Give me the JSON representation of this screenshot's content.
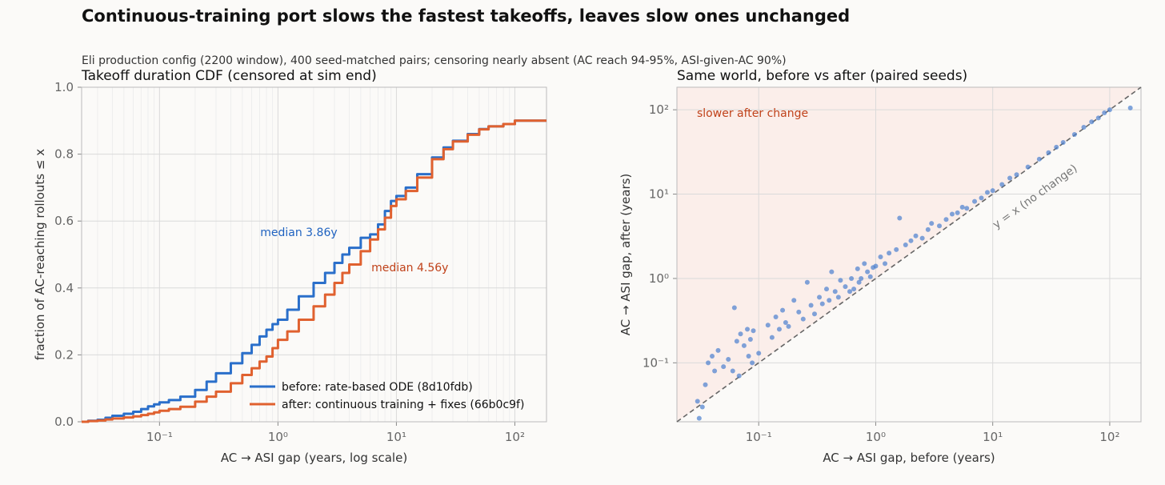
{
  "title": "Continuous-training port slows the fastest takeoffs, leaves slow ones unchanged",
  "subtitle": "Eli production config (2200 window), 400 seed-matched pairs; censoring nearly absent (AC reach 94-95%, ASI-given-AC 90%)",
  "colors": {
    "before": "#2a6fca",
    "after": "#e0612f",
    "scatter": "#4a7fcf",
    "shade": "#fbeeea",
    "grid": "#dadada",
    "diag": "#666666",
    "annot_before": "#1f62c0",
    "annot_after": "#c0421a"
  },
  "chart_data": [
    {
      "type": "line",
      "title": "Takeoff duration CDF (censored at sim end)",
      "xlabel": "AC → ASI gap (years, log scale)",
      "ylabel": "fraction of AC-reaching rollouts ≤ x",
      "xscale": "log",
      "xlim": [
        0.022,
        185
      ],
      "ylim": [
        0,
        1
      ],
      "xticks": [
        {
          "value": 0.1,
          "label": "10⁻¹"
        },
        {
          "value": 1,
          "label": "10⁰"
        },
        {
          "value": 10,
          "label": "10¹"
        },
        {
          "value": 100,
          "label": "10²"
        }
      ],
      "yticks": [
        {
          "value": 0,
          "label": "0.0"
        },
        {
          "value": 0.2,
          "label": "0.2"
        },
        {
          "value": 0.4,
          "label": "0.4"
        },
        {
          "value": 0.6,
          "label": "0.6"
        },
        {
          "value": 0.8,
          "label": "0.8"
        },
        {
          "value": 1,
          "label": "1.0"
        }
      ],
      "grid": true,
      "legend_position": "lower-right",
      "series": [
        {
          "name": "before: rate-based ODE (8d10fdb)",
          "x": [
            0.022,
            0.025,
            0.03,
            0.035,
            0.04,
            0.05,
            0.06,
            0.07,
            0.08,
            0.09,
            0.1,
            0.12,
            0.15,
            0.2,
            0.25,
            0.3,
            0.4,
            0.5,
            0.6,
            0.7,
            0.8,
            0.9,
            1.0,
            1.2,
            1.5,
            2.0,
            2.5,
            3.0,
            3.5,
            4.0,
            5.0,
            6.0,
            7.0,
            8.0,
            9.0,
            10,
            12,
            15,
            20,
            25,
            30,
            40,
            50,
            60,
            80,
            100,
            120,
            185
          ],
          "values": [
            0.0,
            0.003,
            0.006,
            0.012,
            0.018,
            0.024,
            0.03,
            0.038,
            0.046,
            0.052,
            0.058,
            0.065,
            0.075,
            0.095,
            0.12,
            0.145,
            0.175,
            0.205,
            0.23,
            0.255,
            0.275,
            0.292,
            0.305,
            0.335,
            0.375,
            0.415,
            0.445,
            0.475,
            0.5,
            0.52,
            0.55,
            0.56,
            0.59,
            0.63,
            0.66,
            0.675,
            0.7,
            0.74,
            0.79,
            0.82,
            0.84,
            0.86,
            0.875,
            0.883,
            0.89,
            0.9,
            0.9,
            0.9
          ]
        },
        {
          "name": "after: continuous training + fixes (66b0c9f)",
          "x": [
            0.022,
            0.025,
            0.03,
            0.035,
            0.04,
            0.05,
            0.06,
            0.07,
            0.08,
            0.09,
            0.1,
            0.12,
            0.15,
            0.2,
            0.25,
            0.3,
            0.4,
            0.5,
            0.6,
            0.7,
            0.8,
            0.9,
            1.0,
            1.2,
            1.5,
            2.0,
            2.5,
            3.0,
            3.5,
            4.0,
            5.0,
            6.0,
            7.0,
            8.0,
            9.0,
            10,
            12,
            15,
            20,
            25,
            30,
            40,
            50,
            60,
            80,
            100,
            120,
            185
          ],
          "values": [
            0.0,
            0.002,
            0.004,
            0.007,
            0.01,
            0.013,
            0.016,
            0.02,
            0.024,
            0.028,
            0.033,
            0.038,
            0.045,
            0.06,
            0.075,
            0.09,
            0.115,
            0.14,
            0.16,
            0.18,
            0.195,
            0.22,
            0.245,
            0.27,
            0.305,
            0.345,
            0.38,
            0.415,
            0.445,
            0.47,
            0.51,
            0.545,
            0.575,
            0.61,
            0.645,
            0.665,
            0.69,
            0.73,
            0.785,
            0.815,
            0.838,
            0.858,
            0.874,
            0.883,
            0.89,
            0.9,
            0.9,
            0.9
          ]
        }
      ],
      "annotations": [
        {
          "text": "median 3.86y",
          "x": 1.5,
          "y": 0.555
        },
        {
          "text": "median 4.56y",
          "x": 13,
          "y": 0.45
        }
      ]
    },
    {
      "type": "scatter",
      "title": "Same world, before vs after (paired seeds)",
      "xlabel": "AC → ASI gap, before (years)",
      "ylabel": "AC → ASI gap, after (years)",
      "xscale": "log",
      "yscale": "log",
      "xlim": [
        0.02,
        185
      ],
      "ylim": [
        0.02,
        185
      ],
      "xticks": [
        {
          "value": 0.1,
          "label": "10⁻¹"
        },
        {
          "value": 1,
          "label": "10⁰"
        },
        {
          "value": 10,
          "label": "10¹"
        },
        {
          "value": 100,
          "label": "10²"
        }
      ],
      "yticks": [
        {
          "value": 0.1,
          "label": "10⁻¹"
        },
        {
          "value": 1,
          "label": "10⁰"
        },
        {
          "value": 10,
          "label": "10¹"
        },
        {
          "value": 100,
          "label": "10²"
        }
      ],
      "grid": true,
      "diagonal_label": "y = x (no change)",
      "region_label": "slower after change",
      "points": [
        [
          0.03,
          0.035
        ],
        [
          0.031,
          0.022
        ],
        [
          0.033,
          0.03
        ],
        [
          0.035,
          0.055
        ],
        [
          0.037,
          0.1
        ],
        [
          0.04,
          0.12
        ],
        [
          0.042,
          0.08
        ],
        [
          0.045,
          0.14
        ],
        [
          0.05,
          0.09
        ],
        [
          0.055,
          0.11
        ],
        [
          0.06,
          0.08
        ],
        [
          0.062,
          0.45
        ],
        [
          0.065,
          0.18
        ],
        [
          0.068,
          0.07
        ],
        [
          0.07,
          0.22
        ],
        [
          0.075,
          0.16
        ],
        [
          0.08,
          0.25
        ],
        [
          0.082,
          0.12
        ],
        [
          0.085,
          0.19
        ],
        [
          0.088,
          0.1
        ],
        [
          0.09,
          0.24
        ],
        [
          0.1,
          0.13
        ],
        [
          0.12,
          0.28
        ],
        [
          0.13,
          0.2
        ],
        [
          0.14,
          0.35
        ],
        [
          0.15,
          0.25
        ],
        [
          0.16,
          0.42
        ],
        [
          0.17,
          0.3
        ],
        [
          0.18,
          0.27
        ],
        [
          0.2,
          0.55
        ],
        [
          0.22,
          0.4
        ],
        [
          0.24,
          0.33
        ],
        [
          0.26,
          0.9
        ],
        [
          0.28,
          0.48
        ],
        [
          0.3,
          0.38
        ],
        [
          0.33,
          0.6
        ],
        [
          0.35,
          0.5
        ],
        [
          0.38,
          0.75
        ],
        [
          0.4,
          0.55
        ],
        [
          0.42,
          1.2
        ],
        [
          0.45,
          0.7
        ],
        [
          0.48,
          0.6
        ],
        [
          0.5,
          0.95
        ],
        [
          0.55,
          0.8
        ],
        [
          0.6,
          0.7
        ],
        [
          0.62,
          1.0
        ],
        [
          0.65,
          0.75
        ],
        [
          0.7,
          1.3
        ],
        [
          0.72,
          0.9
        ],
        [
          0.75,
          1.0
        ],
        [
          0.8,
          1.5
        ],
        [
          0.85,
          1.2
        ],
        [
          0.9,
          1.05
        ],
        [
          0.95,
          1.35
        ],
        [
          1.0,
          1.4
        ],
        [
          1.1,
          1.8
        ],
        [
          1.2,
          1.5
        ],
        [
          1.3,
          2.0
        ],
        [
          1.5,
          2.2
        ],
        [
          1.6,
          5.2
        ],
        [
          1.8,
          2.5
        ],
        [
          2.0,
          2.8
        ],
        [
          2.2,
          3.2
        ],
        [
          2.5,
          3.0
        ],
        [
          2.8,
          3.8
        ],
        [
          3.0,
          4.5
        ],
        [
          3.5,
          4.2
        ],
        [
          4.0,
          5.0
        ],
        [
          4.5,
          5.8
        ],
        [
          5.0,
          6.0
        ],
        [
          5.5,
          7.0
        ],
        [
          6.0,
          6.8
        ],
        [
          7.0,
          8.2
        ],
        [
          8.0,
          9.0
        ],
        [
          9.0,
          10.5
        ],
        [
          10,
          11
        ],
        [
          12,
          13
        ],
        [
          14,
          15.5
        ],
        [
          16,
          17
        ],
        [
          20,
          21
        ],
        [
          25,
          26
        ],
        [
          30,
          31
        ],
        [
          35,
          36
        ],
        [
          40,
          41
        ],
        [
          50,
          51
        ],
        [
          60,
          62
        ],
        [
          70,
          72
        ],
        [
          80,
          80
        ],
        [
          90,
          92
        ],
        [
          100,
          100
        ],
        [
          150,
          105
        ]
      ]
    }
  ]
}
